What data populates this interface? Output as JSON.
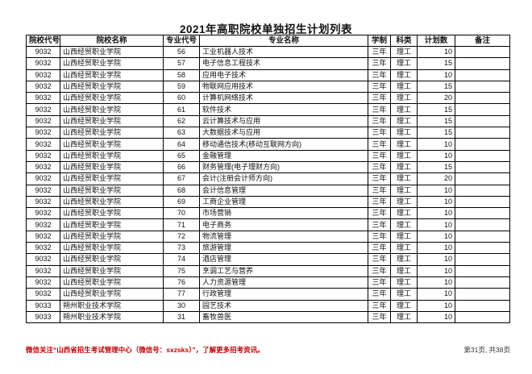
{
  "page": {
    "title": "2021年高职院校单独招生计划列表",
    "footer_notice": "微信关注“山西省招生考试管理中心（微信号：sxzsks）”，了解更多招考资讯。",
    "page_indicator": "第31页, 共38页"
  },
  "colors": {
    "notice_red": "#c00000",
    "border_black": "#000000"
  },
  "table": {
    "columns": [
      "院校代号",
      "院校名称",
      "专业代号",
      "专业名称",
      "学制",
      "科类",
      "计划数",
      "备注"
    ],
    "rows": [
      [
        "9032",
        "山西经贸职业学院",
        "56",
        "工业机器人技术",
        "三年",
        "理工",
        "10",
        ""
      ],
      [
        "9032",
        "山西经贸职业学院",
        "57",
        "电子信息工程技术",
        "三年",
        "理工",
        "15",
        ""
      ],
      [
        "9032",
        "山西经贸职业学院",
        "58",
        "应用电子技术",
        "三年",
        "理工",
        "10",
        ""
      ],
      [
        "9032",
        "山西经贸职业学院",
        "59",
        "物联网应用技术",
        "三年",
        "理工",
        "15",
        ""
      ],
      [
        "9032",
        "山西经贸职业学院",
        "60",
        "计算机网络技术",
        "三年",
        "理工",
        "20",
        ""
      ],
      [
        "9032",
        "山西经贸职业学院",
        "61",
        "软件技术",
        "三年",
        "理工",
        "15",
        ""
      ],
      [
        "9032",
        "山西经贸职业学院",
        "62",
        "云计算技术与应用",
        "三年",
        "理工",
        "15",
        ""
      ],
      [
        "9032",
        "山西经贸职业学院",
        "63",
        "大数据技术与应用",
        "三年",
        "理工",
        "15",
        ""
      ],
      [
        "9032",
        "山西经贸职业学院",
        "64",
        "移动通信技术(移动互联网方向)",
        "三年",
        "理工",
        "10",
        ""
      ],
      [
        "9032",
        "山西经贸职业学院",
        "65",
        "金融管理",
        "三年",
        "理工",
        "10",
        ""
      ],
      [
        "9032",
        "山西经贸职业学院",
        "66",
        "财务管理(电子理财方向)",
        "三年",
        "理工",
        "15",
        ""
      ],
      [
        "9032",
        "山西经贸职业学院",
        "67",
        "会计(注册会计师方向)",
        "三年",
        "理工",
        "20",
        ""
      ],
      [
        "9032",
        "山西经贸职业学院",
        "68",
        "会计信息管理",
        "三年",
        "理工",
        "10",
        ""
      ],
      [
        "9032",
        "山西经贸职业学院",
        "69",
        "工商企业管理",
        "三年",
        "理工",
        "10",
        ""
      ],
      [
        "9032",
        "山西经贸职业学院",
        "70",
        "市场营销",
        "三年",
        "理工",
        "10",
        ""
      ],
      [
        "9032",
        "山西经贸职业学院",
        "71",
        "电子商务",
        "三年",
        "理工",
        "10",
        ""
      ],
      [
        "9032",
        "山西经贸职业学院",
        "72",
        "物流管理",
        "三年",
        "理工",
        "10",
        ""
      ],
      [
        "9032",
        "山西经贸职业学院",
        "73",
        "旅游管理",
        "三年",
        "理工",
        "10",
        ""
      ],
      [
        "9032",
        "山西经贸职业学院",
        "74",
        "酒店管理",
        "三年",
        "理工",
        "10",
        ""
      ],
      [
        "9032",
        "山西经贸职业学院",
        "75",
        "烹调工艺与营养",
        "三年",
        "理工",
        "10",
        ""
      ],
      [
        "9032",
        "山西经贸职业学院",
        "76",
        "人力资源管理",
        "三年",
        "理工",
        "10",
        ""
      ],
      [
        "9032",
        "山西经贸职业学院",
        "77",
        "行政管理",
        "三年",
        "理工",
        "10",
        ""
      ],
      [
        "9033",
        "朔州职业技术学院",
        "30",
        "园艺技术",
        "三年",
        "理工",
        "10",
        ""
      ],
      [
        "9033",
        "朔州职业技术学院",
        "31",
        "畜牧兽医",
        "三年",
        "理工",
        "10",
        ""
      ]
    ]
  }
}
